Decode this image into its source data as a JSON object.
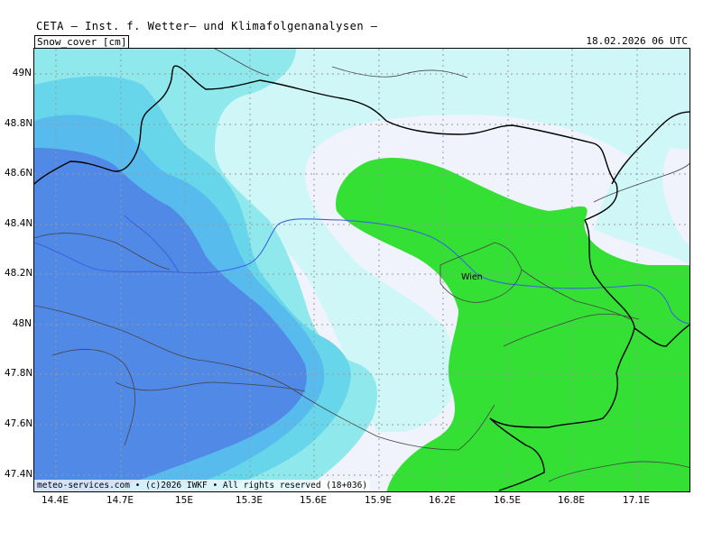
{
  "header": {
    "title": "CETA — Inst. f. Wetter— und Klimafolgenanalysen —",
    "variable": "Snow_cover [cm]",
    "timestamp": "18.02.2026 06 UTC"
  },
  "map": {
    "lat_ticks": [
      "49N",
      "48.8N",
      "48.6N",
      "48.4N",
      "48.2N",
      "48N",
      "47.8N",
      "47.6N",
      "47.4N"
    ],
    "lon_ticks": [
      "14.4E",
      "14.7E",
      "15E",
      "15.3E",
      "15.6E",
      "15.9E",
      "16.2E",
      "16.5E",
      "16.8E",
      "17.1E"
    ],
    "city": "Wien",
    "copyright": "meteo-services.com • (c)2026 IWKF • All rights reserved (18+036)",
    "colors": {
      "background_light": "#cff7f7",
      "very_light": "#f0f2fc",
      "cyan_light": "#8fe9ec",
      "cyan_mid": "#68d6ea",
      "blue_light": "#58bbee",
      "blue_dark": "#5189e6",
      "green": "#34e034",
      "river": "#3a64e0",
      "border": "#000000",
      "grid": "#999999"
    }
  }
}
